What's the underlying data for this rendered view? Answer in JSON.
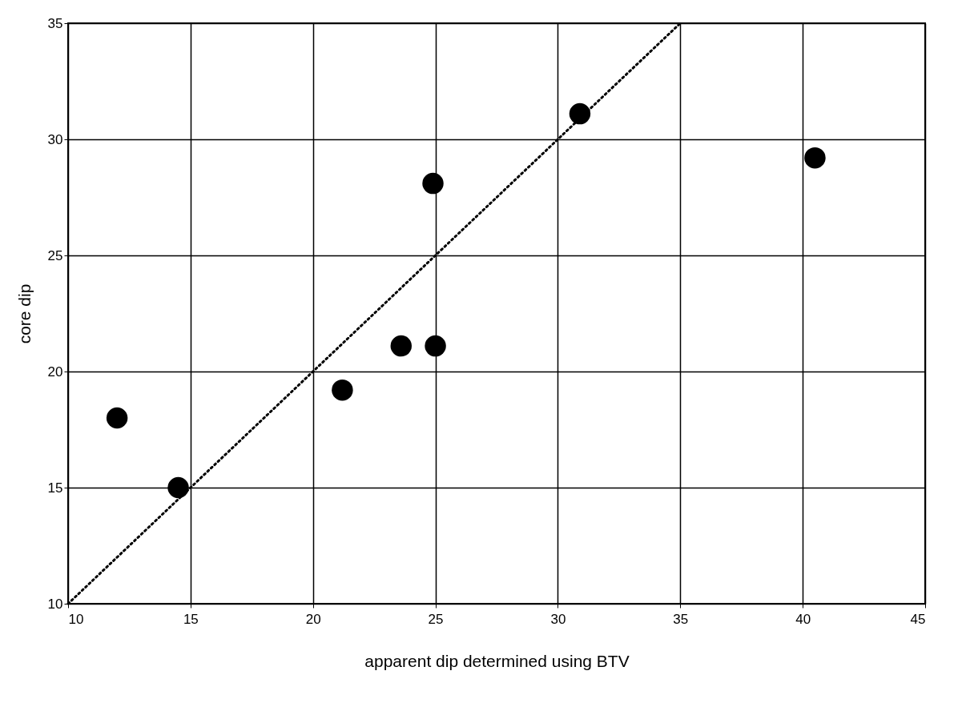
{
  "chart_data": {
    "type": "scatter",
    "xlabel": "apparent dip determined using BTV",
    "ylabel": "core dip",
    "x": [
      12,
      14.5,
      21.2,
      23.6,
      25,
      24.9,
      30.9,
      40.5
    ],
    "series": [
      {
        "color": "#000000",
        "marker": "circle",
        "values": [
          18,
          15,
          19.2,
          21.1,
          21.1,
          28.1,
          31.1,
          29.2
        ]
      },
      {
        "type": "line",
        "color": "#000000",
        "line_style": "dotted",
        "marker": "none",
        "x": [
          10,
          35
        ],
        "values": [
          10,
          35
        ]
      }
    ],
    "xlim": [
      10,
      45
    ],
    "xticks": [
      10,
      15,
      20,
      25,
      30,
      35,
      40,
      45
    ],
    "ylim": [
      10,
      35
    ],
    "yticks": [
      10,
      15,
      20,
      25,
      30,
      35
    ],
    "grid": true
  }
}
